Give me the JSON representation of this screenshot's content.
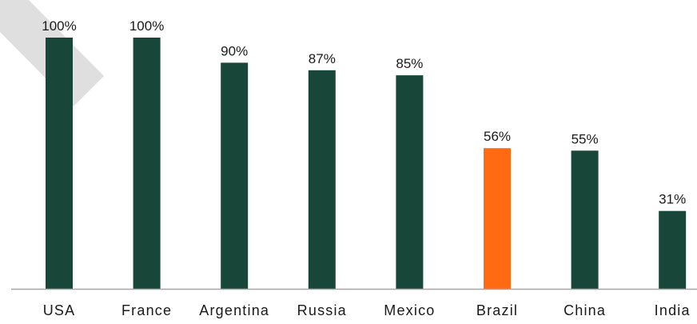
{
  "chart_data": {
    "type": "bar",
    "categories": [
      "USA",
      "France",
      "Argentina",
      "Russia",
      "Mexico",
      "Brazil",
      "China",
      "India"
    ],
    "values": [
      100,
      100,
      90,
      87,
      85,
      56,
      55,
      31
    ],
    "value_labels": [
      "100%",
      "100%",
      "90%",
      "87%",
      "85%",
      "56%",
      "55%",
      "31%"
    ],
    "ylim": [
      0,
      100
    ],
    "grid": false,
    "legend": "none",
    "colors": {
      "default": "#18473a",
      "highlight": "#ff6a13",
      "axis": "#a6a6a6",
      "watermark": "#d9d9d9"
    },
    "highlight_category": "Brazil"
  }
}
